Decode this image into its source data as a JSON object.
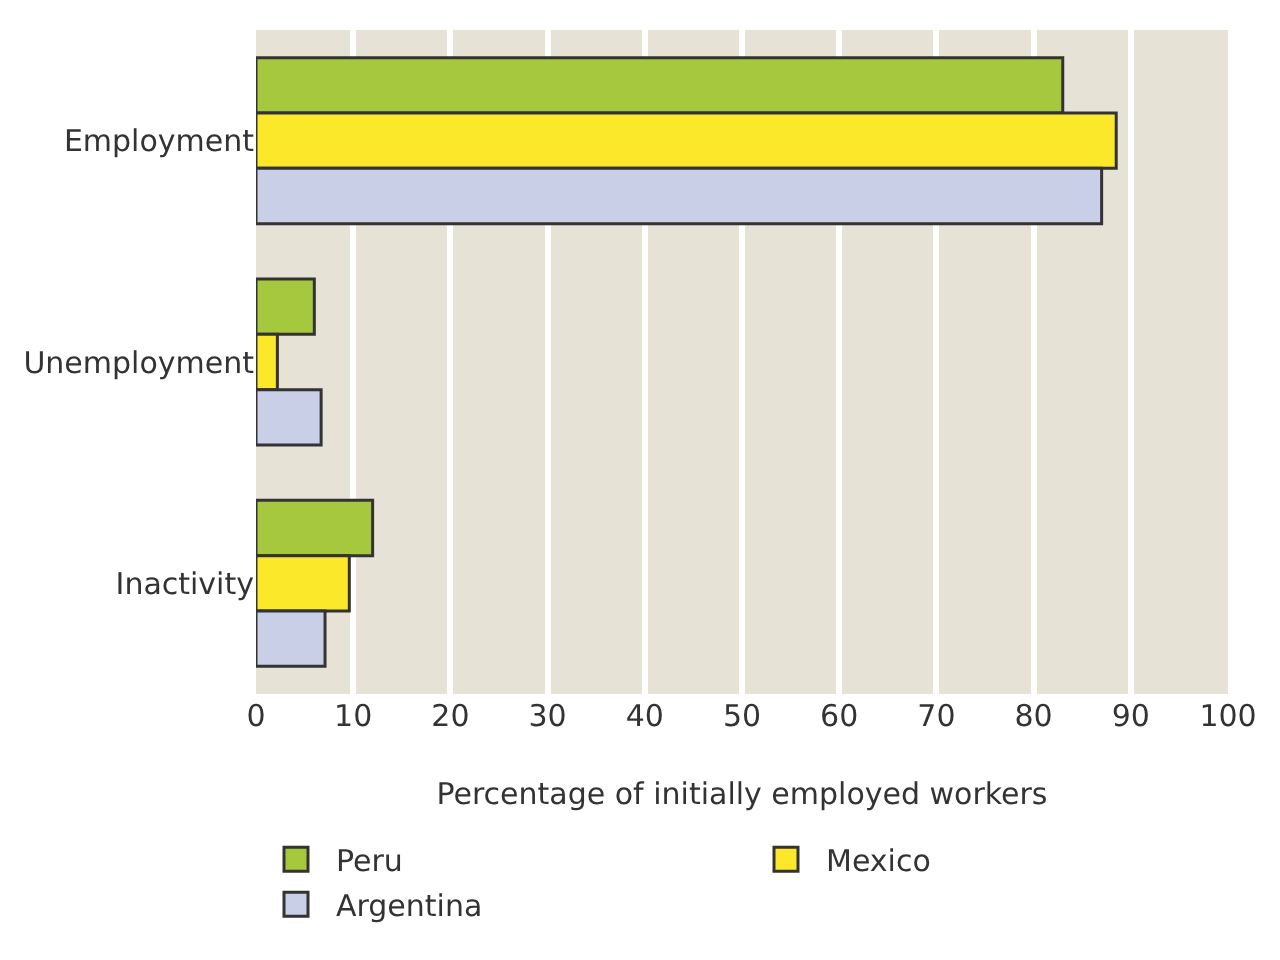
{
  "chart_data": {
    "type": "bar",
    "orientation": "horizontal",
    "xlabel": "Percentage of initially employed workers",
    "categories": [
      "Employment",
      "Unemployment",
      "Inactivity"
    ],
    "series": [
      {
        "name": "Peru",
        "color": "#a5c83f",
        "values": [
          83,
          6,
          12
        ]
      },
      {
        "name": "Mexico",
        "color": "#fbe82a",
        "values": [
          88.5,
          2.2,
          9.6
        ]
      },
      {
        "name": "Argentina",
        "color": "#c9cfe7",
        "values": [
          87,
          6.7,
          7.1
        ]
      }
    ],
    "xlim": [
      0,
      100
    ],
    "xticks": [
      0,
      10,
      20,
      30,
      40,
      50,
      60,
      70,
      80,
      90,
      100
    ],
    "grid": "x",
    "legend": "bottom"
  }
}
